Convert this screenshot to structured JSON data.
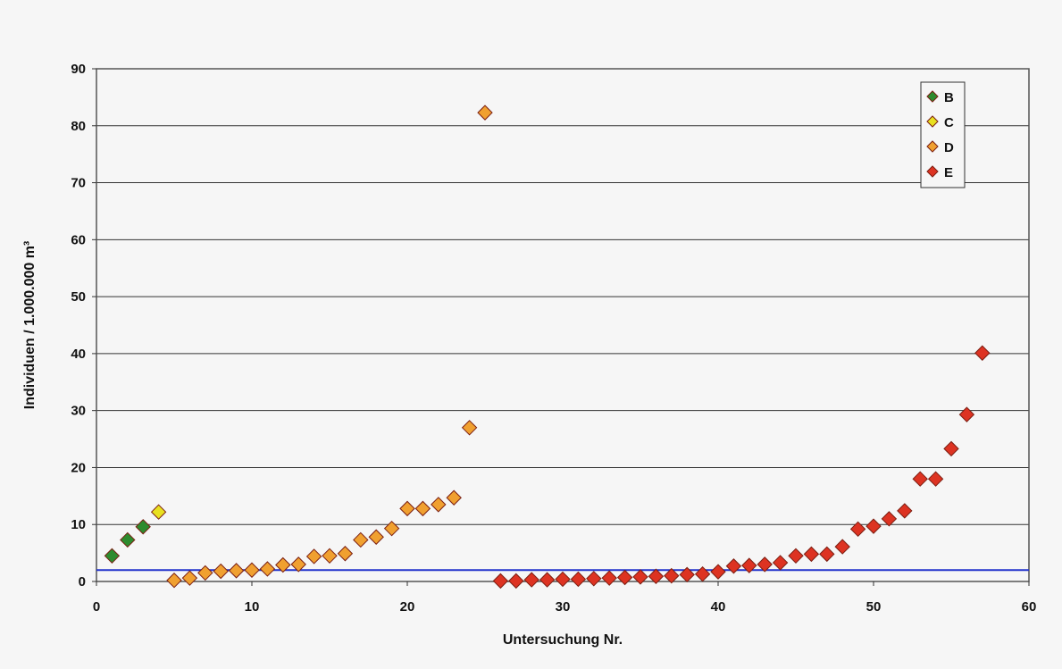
{
  "chart_data": {
    "type": "scatter",
    "xlabel": "Untersuchung Nr.",
    "ylabel": "Individuen / 1.000.000 m³",
    "xlim": [
      0,
      60
    ],
    "ylim": [
      0,
      90
    ],
    "x_ticks": [
      "0",
      "10",
      "20",
      "30",
      "40",
      "50",
      "60"
    ],
    "y_ticks": [
      "0",
      "10",
      "20",
      "30",
      "40",
      "50",
      "60",
      "70",
      "80",
      "90"
    ],
    "grid": "horizontal",
    "legend_position": "top-right",
    "reference_line": {
      "y": 2,
      "color": "#2233cc"
    },
    "series": [
      {
        "name": "B",
        "color": "#2e8b2e",
        "points": [
          [
            1,
            4.5
          ],
          [
            2,
            7.3
          ],
          [
            3,
            9.6
          ]
        ]
      },
      {
        "name": "C",
        "color": "#e8e020",
        "points": [
          [
            4,
            12.2
          ]
        ]
      },
      {
        "name": "D",
        "color": "#f0a030",
        "points": [
          [
            5,
            0.2
          ],
          [
            6,
            0.6
          ],
          [
            7,
            1.5
          ],
          [
            8,
            1.8
          ],
          [
            9,
            1.9
          ],
          [
            10,
            2.0
          ],
          [
            11,
            2.2
          ],
          [
            12,
            2.9
          ],
          [
            13,
            3.0
          ],
          [
            14,
            4.4
          ],
          [
            15,
            4.5
          ],
          [
            16,
            4.9
          ],
          [
            17,
            7.3
          ],
          [
            18,
            7.8
          ],
          [
            19,
            9.3
          ],
          [
            20,
            12.8
          ],
          [
            21,
            12.8
          ],
          [
            22,
            13.5
          ],
          [
            23,
            14.7
          ],
          [
            24,
            27.0
          ],
          [
            25,
            82.3
          ]
        ]
      },
      {
        "name": "E",
        "color": "#dd3322",
        "points": [
          [
            26,
            0.1
          ],
          [
            27,
            0.1
          ],
          [
            28,
            0.3
          ],
          [
            29,
            0.3
          ],
          [
            30,
            0.4
          ],
          [
            31,
            0.4
          ],
          [
            32,
            0.5
          ],
          [
            33,
            0.6
          ],
          [
            34,
            0.7
          ],
          [
            35,
            0.8
          ],
          [
            36,
            0.9
          ],
          [
            37,
            1.0
          ],
          [
            38,
            1.2
          ],
          [
            39,
            1.3
          ],
          [
            40,
            1.7
          ],
          [
            41,
            2.7
          ],
          [
            42,
            2.8
          ],
          [
            43,
            3.0
          ],
          [
            44,
            3.3
          ],
          [
            45,
            4.5
          ],
          [
            46,
            4.8
          ],
          [
            47,
            4.8
          ],
          [
            48,
            6.1
          ],
          [
            49,
            9.2
          ],
          [
            50,
            9.7
          ],
          [
            51,
            11.0
          ],
          [
            52,
            12.4
          ],
          [
            53,
            18.0
          ],
          [
            54,
            18.0
          ],
          [
            55,
            23.3
          ],
          [
            56,
            29.3
          ],
          [
            57,
            40.1
          ]
        ]
      }
    ]
  }
}
